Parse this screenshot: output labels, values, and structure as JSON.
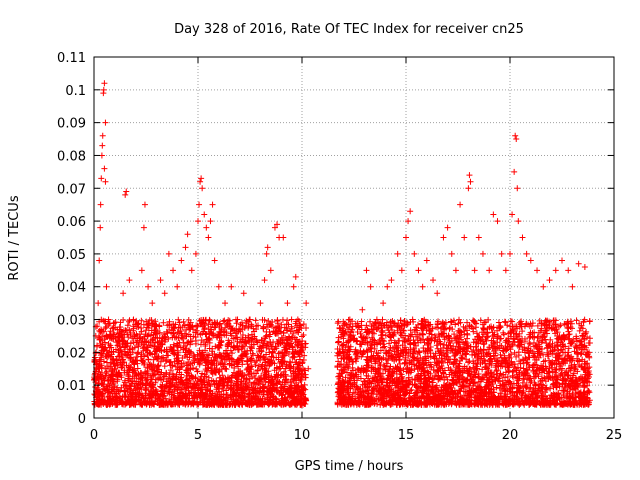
{
  "chart_data": {
    "type": "scatter",
    "title": "Day 328 of 2016, Rate Of TEC Index for receiver cn25",
    "xlabel": "GPS time / hours",
    "ylabel": "ROTI / TECUs",
    "xlim": [
      0,
      25
    ],
    "ylim": [
      0,
      0.11
    ],
    "xticks": [
      0,
      5,
      10,
      15,
      20,
      25
    ],
    "xtick_labels": [
      "0",
      "5",
      "10",
      "15",
      "20",
      "25"
    ],
    "yticks": [
      0,
      0.01,
      0.02,
      0.03,
      0.04,
      0.05,
      0.06,
      0.07,
      0.08,
      0.09,
      0.1,
      0.11
    ],
    "ytick_labels": [
      "0",
      "0.01",
      "0.02",
      "0.03",
      "0.04",
      "0.05",
      "0.06",
      "0.07",
      "0.08",
      "0.09",
      "0.1",
      "0.11"
    ],
    "grid": true,
    "marker": "+",
    "color": "#ff0000",
    "series": [
      {
        "name": "ROTI",
        "points": [
          [
            0.05,
            0.012
          ],
          [
            0.1,
            0.02
          ],
          [
            0.15,
            0.028
          ],
          [
            0.2,
            0.035
          ],
          [
            0.25,
            0.048
          ],
          [
            0.3,
            0.058
          ],
          [
            0.32,
            0.065
          ],
          [
            0.35,
            0.073
          ],
          [
            0.38,
            0.08
          ],
          [
            0.4,
            0.083
          ],
          [
            0.42,
            0.086
          ],
          [
            0.45,
            0.099
          ],
          [
            0.47,
            0.1
          ],
          [
            0.5,
            0.102
          ],
          [
            0.55,
            0.09
          ],
          [
            0.5,
            0.076
          ],
          [
            0.55,
            0.072
          ],
          [
            0.6,
            0.04
          ],
          [
            0.7,
            0.03
          ],
          [
            0.8,
            0.025
          ],
          [
            0.9,
            0.018
          ],
          [
            1.0,
            0.015
          ],
          [
            1.2,
            0.02
          ],
          [
            1.4,
            0.038
          ],
          [
            1.5,
            0.068
          ],
          [
            1.55,
            0.069
          ],
          [
            1.7,
            0.042
          ],
          [
            1.9,
            0.03
          ],
          [
            2.1,
            0.025
          ],
          [
            2.3,
            0.045
          ],
          [
            2.4,
            0.058
          ],
          [
            2.45,
            0.065
          ],
          [
            2.6,
            0.04
          ],
          [
            2.8,
            0.035
          ],
          [
            3.0,
            0.028
          ],
          [
            3.2,
            0.042
          ],
          [
            3.4,
            0.038
          ],
          [
            3.6,
            0.05
          ],
          [
            3.8,
            0.045
          ],
          [
            4.0,
            0.04
          ],
          [
            4.2,
            0.048
          ],
          [
            4.4,
            0.052
          ],
          [
            4.5,
            0.056
          ],
          [
            4.7,
            0.045
          ],
          [
            4.9,
            0.05
          ],
          [
            5.0,
            0.06
          ],
          [
            5.05,
            0.065
          ],
          [
            5.1,
            0.072
          ],
          [
            5.15,
            0.073
          ],
          [
            5.2,
            0.07
          ],
          [
            5.3,
            0.062
          ],
          [
            5.4,
            0.058
          ],
          [
            5.5,
            0.055
          ],
          [
            5.6,
            0.06
          ],
          [
            5.7,
            0.065
          ],
          [
            5.8,
            0.048
          ],
          [
            6.0,
            0.04
          ],
          [
            6.3,
            0.035
          ],
          [
            6.6,
            0.04
          ],
          [
            6.9,
            0.03
          ],
          [
            7.2,
            0.038
          ],
          [
            7.5,
            0.03
          ],
          [
            7.8,
            0.028
          ],
          [
            8.0,
            0.035
          ],
          [
            8.2,
            0.042
          ],
          [
            8.3,
            0.05
          ],
          [
            8.35,
            0.052
          ],
          [
            8.5,
            0.045
          ],
          [
            8.7,
            0.058
          ],
          [
            8.8,
            0.059
          ],
          [
            8.9,
            0.055
          ],
          [
            9.1,
            0.055
          ],
          [
            9.3,
            0.035
          ],
          [
            9.5,
            0.03
          ],
          [
            9.6,
            0.04
          ],
          [
            9.7,
            0.043
          ],
          [
            9.8,
            0.03
          ],
          [
            10.0,
            0.02
          ],
          [
            10.2,
            0.035
          ],
          [
            10.3,
            0.015
          ],
          [
            11.8,
            0.02
          ],
          [
            12.0,
            0.025
          ],
          [
            12.3,
            0.03
          ],
          [
            12.6,
            0.028
          ],
          [
            12.9,
            0.033
          ],
          [
            13.1,
            0.045
          ],
          [
            13.3,
            0.04
          ],
          [
            13.6,
            0.03
          ],
          [
            13.9,
            0.035
          ],
          [
            14.1,
            0.04
          ],
          [
            14.3,
            0.042
          ],
          [
            14.6,
            0.05
          ],
          [
            14.8,
            0.045
          ],
          [
            15.0,
            0.055
          ],
          [
            15.1,
            0.06
          ],
          [
            15.2,
            0.063
          ],
          [
            15.4,
            0.05
          ],
          [
            15.6,
            0.045
          ],
          [
            15.8,
            0.04
          ],
          [
            16.0,
            0.048
          ],
          [
            16.3,
            0.042
          ],
          [
            16.5,
            0.038
          ],
          [
            16.8,
            0.055
          ],
          [
            17.0,
            0.058
          ],
          [
            17.2,
            0.05
          ],
          [
            17.4,
            0.045
          ],
          [
            17.6,
            0.065
          ],
          [
            17.8,
            0.055
          ],
          [
            18.0,
            0.07
          ],
          [
            18.05,
            0.074
          ],
          [
            18.1,
            0.072
          ],
          [
            18.3,
            0.045
          ],
          [
            18.5,
            0.055
          ],
          [
            18.7,
            0.05
          ],
          [
            19.0,
            0.045
          ],
          [
            19.2,
            0.062
          ],
          [
            19.4,
            0.06
          ],
          [
            19.6,
            0.05
          ],
          [
            19.8,
            0.045
          ],
          [
            20.0,
            0.05
          ],
          [
            20.1,
            0.062
          ],
          [
            20.2,
            0.075
          ],
          [
            20.25,
            0.086
          ],
          [
            20.3,
            0.085
          ],
          [
            20.35,
            0.07
          ],
          [
            20.4,
            0.06
          ],
          [
            20.6,
            0.055
          ],
          [
            20.8,
            0.05
          ],
          [
            21.0,
            0.048
          ],
          [
            21.3,
            0.045
          ],
          [
            21.6,
            0.04
          ],
          [
            21.9,
            0.042
          ],
          [
            22.2,
            0.045
          ],
          [
            22.5,
            0.048
          ],
          [
            22.8,
            0.045
          ],
          [
            23.0,
            0.04
          ],
          [
            23.3,
            0.047
          ],
          [
            23.6,
            0.046
          ],
          [
            23.8,
            0.02
          ]
        ],
        "bands": [
          {
            "x_start": 0.0,
            "x_end": 10.2,
            "y_min": 0.004,
            "y_max": 0.03
          },
          {
            "x_start": 11.7,
            "x_end": 23.85,
            "y_min": 0.004,
            "y_max": 0.03
          }
        ]
      }
    ]
  }
}
